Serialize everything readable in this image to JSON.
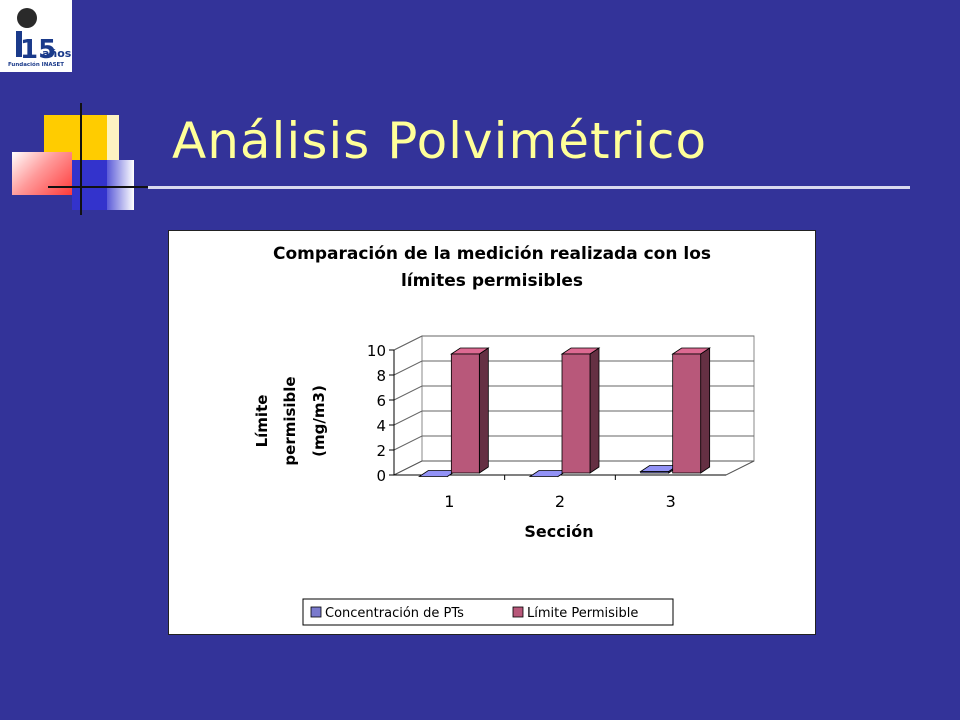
{
  "slide": {
    "title": "Análisis Polvimétrico",
    "logo_text": "años",
    "logo_subtext": "Fundación INASET",
    "logo_number": "15"
  },
  "colors": {
    "background": "#333399",
    "title": "#ffff99",
    "series_concentracion": "#7a7acd",
    "series_limite": "#b8587a"
  },
  "chart_data": {
    "type": "bar",
    "title_line1": "Comparación de la medición realizada con los",
    "title_line2": "límites permisibles",
    "xlabel": "Sección",
    "ylabel_line1": "Límite",
    "ylabel_line2": "permisible",
    "ylabel_line3": "(mg/m3)",
    "categories": [
      "1",
      "2",
      "3"
    ],
    "ylim": [
      0,
      10
    ],
    "yticks": [
      "0",
      "2",
      "4",
      "6",
      "8",
      "10"
    ],
    "grid": true,
    "legend_position": "bottom",
    "series": [
      {
        "name": "Concentración de PTs",
        "values": [
          0.2,
          0.2,
          0.6
        ]
      },
      {
        "name": "Límite Permisible",
        "values": [
          10,
          10,
          10
        ]
      }
    ]
  }
}
